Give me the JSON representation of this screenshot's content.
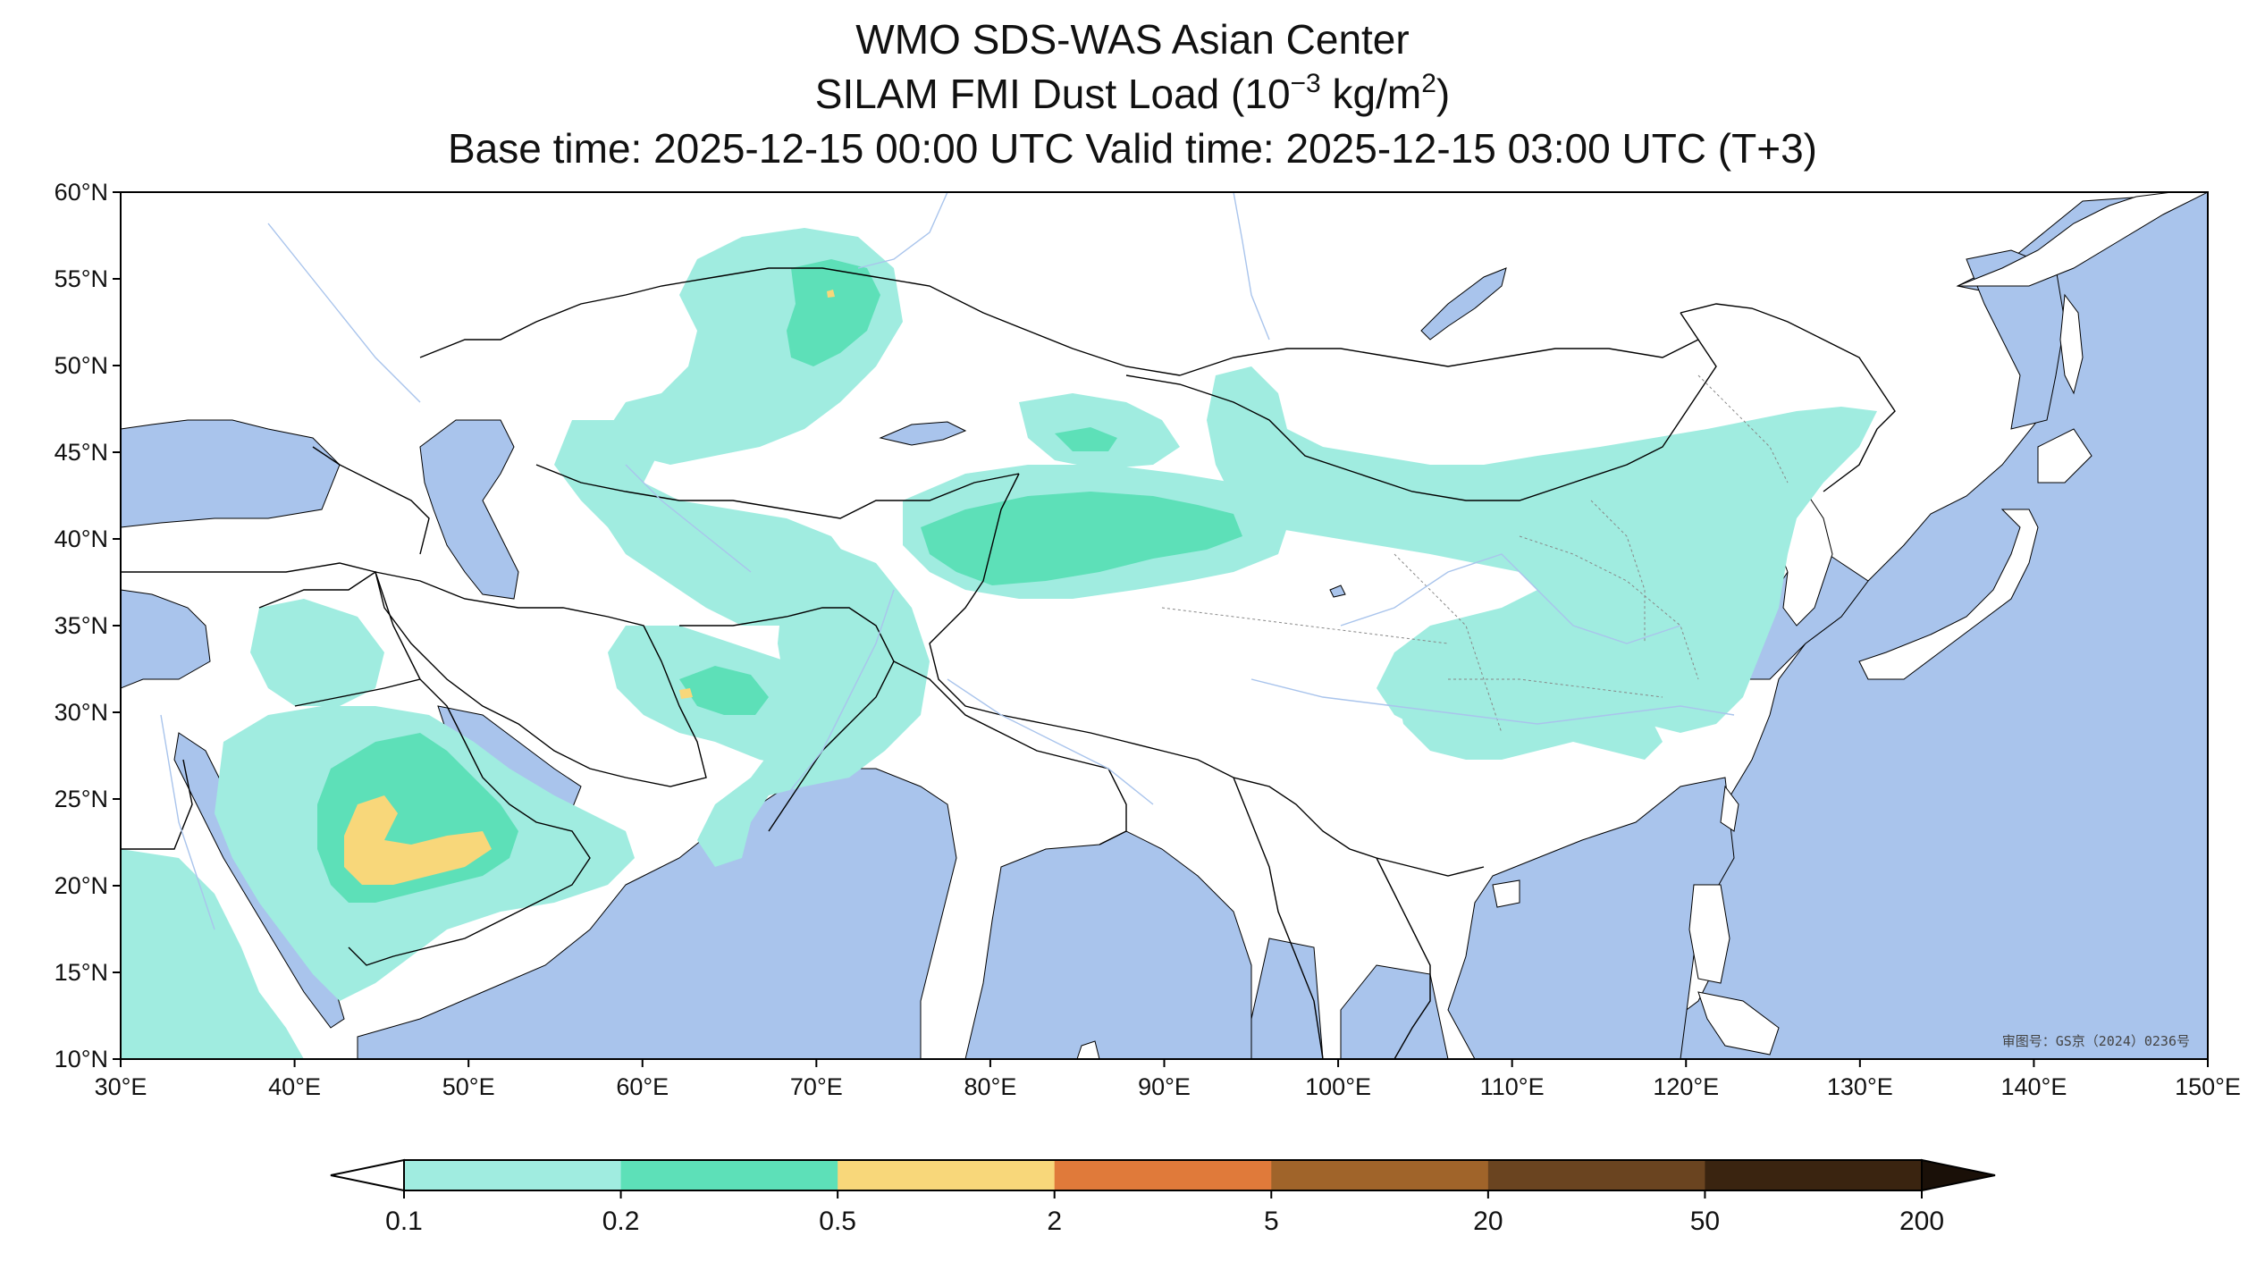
{
  "title": {
    "line1": "WMO SDS-WAS Asian Center",
    "line2_prefix": "SILAM FMI Dust Load (10",
    "line2_exp": "−3",
    "line2_mid": " kg/m",
    "line2_exp2": "2",
    "line2_suffix": ")",
    "line3": "Base time: 2025-12-15 00:00 UTC Valid time: 2025-12-15 03:00 UTC (T+3)"
  },
  "map": {
    "lon_range": [
      30,
      150
    ],
    "lat_range": [
      10,
      60
    ],
    "lon_ticks": [
      "30°E",
      "40°E",
      "50°E",
      "60°E",
      "70°E",
      "80°E",
      "90°E",
      "100°E",
      "110°E",
      "120°E",
      "130°E",
      "140°E",
      "150°E"
    ],
    "lat_ticks": [
      "10°N",
      "15°N",
      "20°N",
      "25°N",
      "30°N",
      "35°N",
      "40°N",
      "45°N",
      "50°N",
      "55°N",
      "60°N"
    ],
    "watermark": "审图号：GS京（2024）0236号",
    "colors": {
      "ocean": "#a9c4ec",
      "land": "#ffffff",
      "border": "#000000",
      "river": "#a9c4ec"
    }
  },
  "colorbar": {
    "labels": [
      "0.1",
      "0.2",
      "0.5",
      "2",
      "5",
      "20",
      "50",
      "200"
    ],
    "colors": [
      "#a0ece0",
      "#5de0b8",
      "#f8d77a",
      "#e07a3a",
      "#a0642a",
      "#6a4420",
      "#3a2410"
    ]
  }
}
